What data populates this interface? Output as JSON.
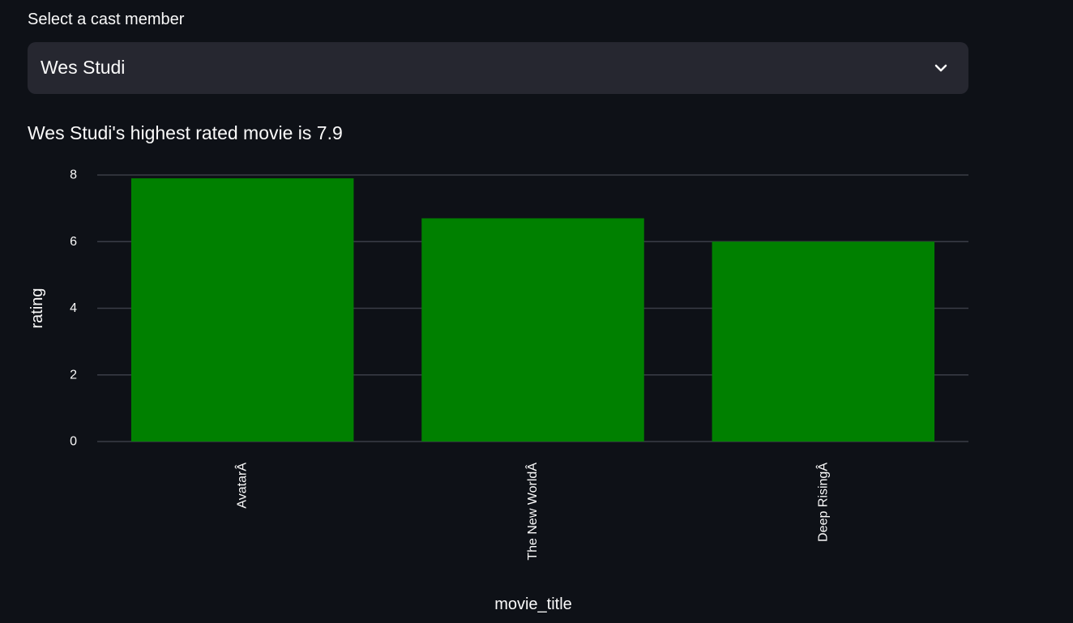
{
  "select": {
    "label": "Select a cast member",
    "value": "Wes Studi",
    "chevron_icon": "chevron-down-icon"
  },
  "subheader": "Wes Studi's highest rated movie is 7.9",
  "colors": {
    "background": "#0e1117",
    "select_bg": "#262730",
    "bar": "#008000",
    "grid": "#3a3d47",
    "text": "#fafafa"
  },
  "chart_data": {
    "type": "bar",
    "categories": [
      "AvatarÂ",
      "The New WorldÂ",
      "Deep RisingÂ"
    ],
    "values": [
      7.9,
      6.7,
      6.0
    ],
    "title": "",
    "xlabel": "movie_title",
    "ylabel": "rating",
    "ylim": [
      0,
      8
    ],
    "yticks": [
      0,
      2,
      4,
      6,
      8
    ],
    "grid": true,
    "legend": "none"
  }
}
